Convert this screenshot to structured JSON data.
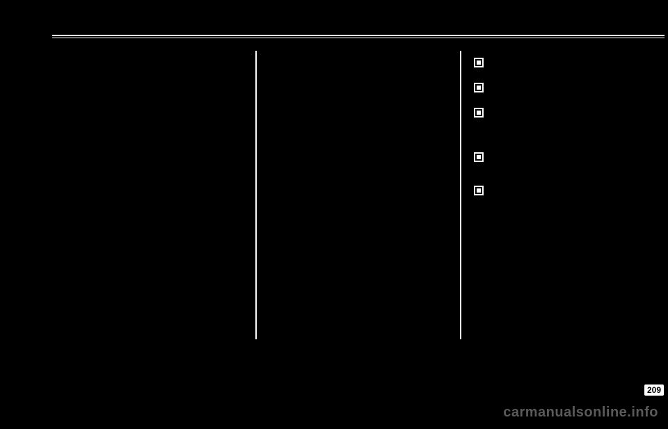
{
  "page_number": "209",
  "watermark": "carmanualsonline.info",
  "layout": {
    "columns": 3,
    "divider_color": "#ffffff",
    "background": "#000000",
    "text_color": "#ffffff"
  },
  "bullets": [
    {
      "spacer_class": "bullet-h1"
    },
    {
      "spacer_class": "bullet-h2"
    },
    {
      "spacer_class": "bullet-h3"
    },
    {
      "spacer_class": "bullet-h4"
    },
    {
      "spacer_class": "bullet-h5"
    }
  ]
}
